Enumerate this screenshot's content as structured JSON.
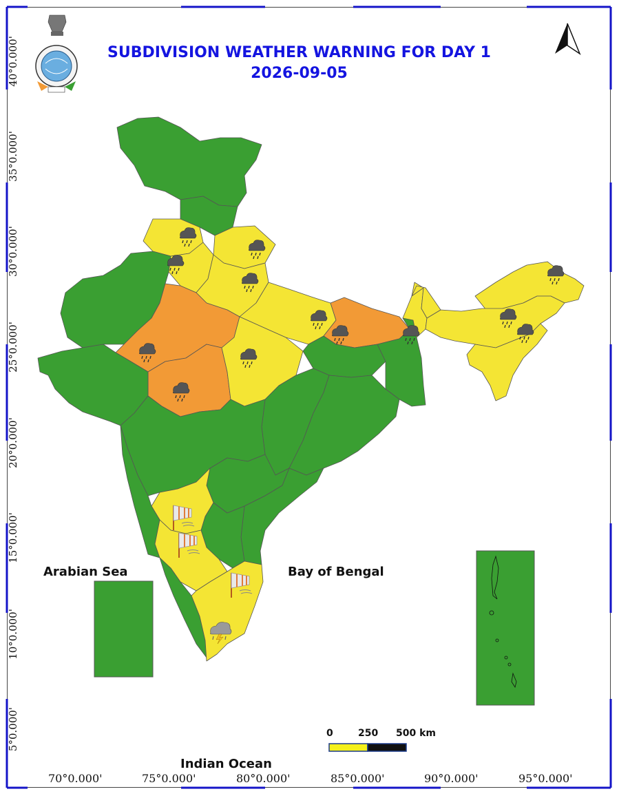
{
  "title": "SUBDIVISION WEATHER WARNING FOR DAY 1",
  "date": "2026-09-05",
  "seas": {
    "arabian": "Arabian Sea",
    "bengal": "Bay of Bengal",
    "indian": "Indian Ocean"
  },
  "longitude_labels": [
    "70°0.000'",
    "75°0.000'",
    "80°0.000'",
    "85°0.000'",
    "90°0.000'",
    "95°0.000'"
  ],
  "latitude_labels": [
    "40°0.000'",
    "35°0.000'",
    "30°0.000'",
    "25°0.000'",
    "20°0.000'",
    "15°0.000'",
    "10°0.000'",
    "5°0.000'"
  ],
  "scale_bar": {
    "labels": [
      "0",
      "250",
      "500 km"
    ]
  },
  "colors": {
    "no_warning": "#3a9f32",
    "yellow": "#f4e534",
    "orange": "#f29a36",
    "title": "#1414e0"
  },
  "icons": [
    "north-arrow-icon",
    "imd-emblem-icon",
    "heavy-rain-icon",
    "strong-wind-icon",
    "thunderstorm-icon"
  ]
}
